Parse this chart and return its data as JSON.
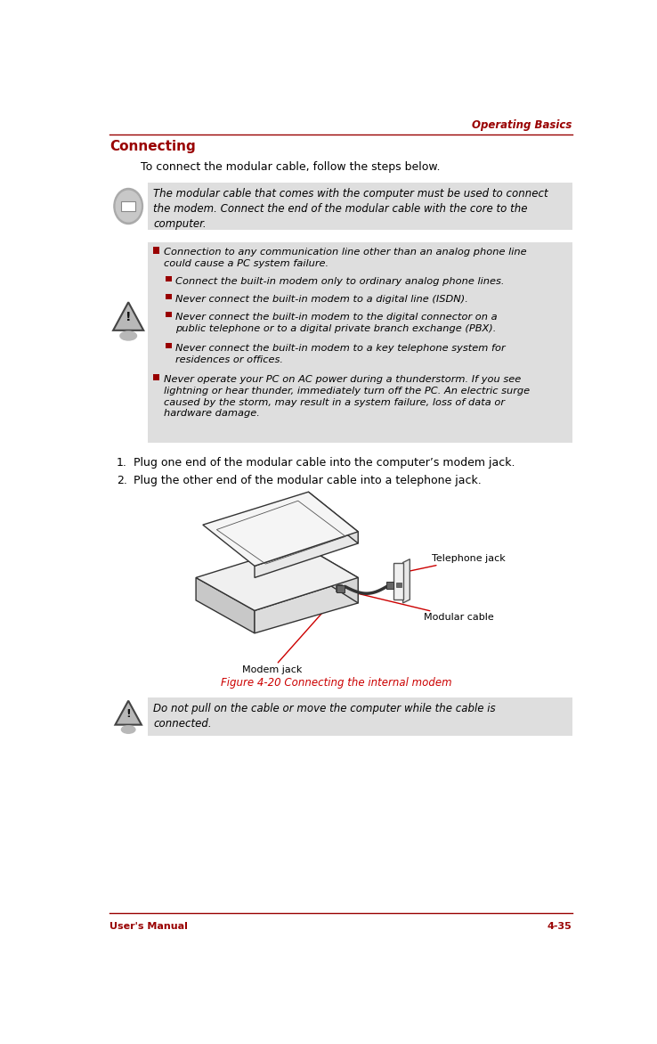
{
  "page_width": 7.38,
  "page_height": 11.72,
  "bg_color": "#ffffff",
  "header_text": "Operating Basics",
  "header_color": "#990000",
  "footer_left": "User's Manual",
  "footer_right": "4-35",
  "footer_color": "#990000",
  "title": "Connecting",
  "title_color": "#990000",
  "intro_text": "To connect the modular cable, follow the steps below.",
  "note_box_bg": "#dedede",
  "note_text": "The modular cable that comes with the computer must be used to connect\nthe modem. Connect the end of the modular cable with the core to the\ncomputer.",
  "warning_box_bg": "#dedede",
  "warning_bullets_level1_0": "Connection to any communication line other than an analog phone line\ncould cause a PC system failure.",
  "warning_bullets_level2": [
    "Connect the built-in modem only to ordinary analog phone lines.",
    "Never connect the built-in modem to a digital line (ISDN).",
    "Never connect the built-in modem to the digital connector on a\npublic telephone or to a digital private branch exchange (PBX).",
    "Never connect the built-in modem to a key telephone system for\nresidences or offices."
  ],
  "warning_bullets_level1_1": "Never operate your PC on AC power during a thunderstorm. If you see\nlightning or hear thunder, immediately turn off the PC. An electric surge\ncaused by the storm, may result in a system failure, loss of data or\nhardware damage.",
  "steps": [
    "Plug one end of the modular cable into the computer’s modem jack.",
    "Plug the other end of the modular cable into a telephone jack."
  ],
  "figure_caption": "Figure 4-20 Connecting the internal modem",
  "figure_caption_color": "#cc0000",
  "label_telephone_jack": "Telephone jack",
  "label_modular_cable": "Modular cable",
  "label_modem_jack": "Modem jack",
  "do_not_box_bg": "#dedede",
  "do_not_text": "Do not pull on the cable or move the computer while the cable is\nconnected.",
  "bullet_color": "#990000",
  "text_color": "#000000",
  "line_color": "#990000",
  "arrow_color": "#cc0000"
}
